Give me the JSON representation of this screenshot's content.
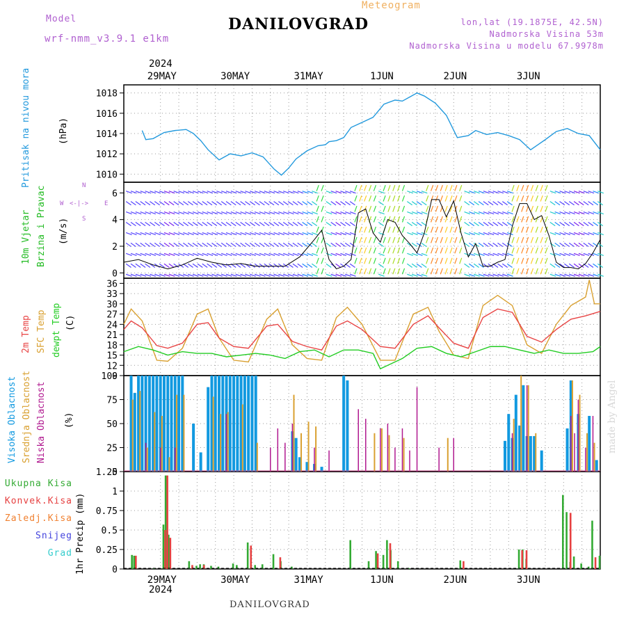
{
  "header": {
    "model_label": "Model",
    "model_name": "wrf-nmm_v3.9.1 e1km",
    "title": "DANILOVGRAD",
    "meteogram_label": "Meteogram",
    "lonlat": "lon,lat (19.1875E, 42.5N)",
    "altitude": "Nadmorska Visina 53m",
    "model_altitude": "Nadmorska Visina u modelu 67.9978m",
    "footer_station": "DANILOVGRAD",
    "watermark": "made by Angel"
  },
  "colors": {
    "pressure": "#2299dd",
    "wind_label": "#22bb22",
    "temp2m": "#e84444",
    "sfc_temp": "#d9a030",
    "dewpt": "#22cc22",
    "high_cloud": "#1199e0",
    "mid_cloud": "#d9a030",
    "low_cloud": "#b0188f",
    "total_precip": "#33aa33",
    "convective_precip": "#e64040",
    "frozen_precip": "#f08030",
    "snow": "#4444dd",
    "graupel": "#33cccc",
    "header_purple": "#b060d0",
    "meteogram_orange": "#f0b060"
  },
  "time_axis": {
    "year_top": "2024",
    "year_bottom": "2024",
    "day_labels": [
      "29MAY",
      "30MAY",
      "31MAY",
      "1JUN",
      "2JUN",
      "3JUN"
    ]
  },
  "chart_data": [
    {
      "type": "line",
      "panel": "pressure",
      "ylabel_main": "Pritisak na nivou mora",
      "ylabel_unit": "(hPa)",
      "ylim": [
        1009.2,
        1018.8
      ],
      "yticks": [
        "1010",
        "1012",
        "1014",
        "1016",
        "1018"
      ],
      "x_unit": "days from 28 May 00 UTC",
      "series": [
        {
          "x": [
            0.25,
            0.3,
            0.4,
            0.55,
            0.7,
            0.85,
            0.95,
            1.05,
            1.15,
            1.3,
            1.45,
            1.6,
            1.75,
            1.9,
            2.05,
            2.15,
            2.25,
            2.35,
            2.5,
            2.65,
            2.75,
            2.8,
            2.9,
            3.0,
            3.1,
            3.25,
            3.4,
            3.55,
            3.7,
            3.8,
            3.9,
            4.0,
            4.1,
            4.25,
            4.4,
            4.55,
            4.7,
            4.8,
            4.95,
            5.1,
            5.25,
            5.4,
            5.55,
            5.65,
            5.75,
            5.9,
            6.05,
            6.2,
            6.35,
            6.5
          ],
          "y": [
            1014.3,
            1013.4,
            1013.5,
            1014.1,
            1014.3,
            1014.4,
            1014.0,
            1013.3,
            1012.4,
            1011.4,
            1012.0,
            1011.8,
            1012.1,
            1011.7,
            1010.5,
            1009.9,
            1010.6,
            1011.5,
            1012.3,
            1012.8,
            1012.9,
            1013.2,
            1013.3,
            1013.6,
            1014.6,
            1015.1,
            1015.6,
            1016.9,
            1017.3,
            1017.2,
            1017.6,
            1018.0,
            1017.7,
            1017.0,
            1015.8,
            1013.6,
            1013.8,
            1014.3,
            1013.9,
            1014.1,
            1013.8,
            1013.4,
            1012.4,
            1012.9,
            1013.4,
            1014.2,
            1014.5,
            1014.0,
            1013.8,
            1012.4
          ]
        }
      ]
    },
    {
      "type": "line",
      "panel": "wind",
      "ylabel_main": "10m Vjetar",
      "ylabel_sub": "Brzina i Pravac",
      "ylabel_unit": "(m/s)",
      "compass": {
        "n": "N",
        "s": "S",
        "w": "W",
        "e": "E",
        "arrows": "<-|->"
      },
      "ylim": [
        -0.4,
        6.8
      ],
      "yticks": [
        "0",
        "2",
        "4",
        "6"
      ],
      "series": [
        {
          "name": "speed",
          "x": [
            0.0,
            0.2,
            0.4,
            0.6,
            0.8,
            1.0,
            1.2,
            1.4,
            1.6,
            1.8,
            2.0,
            2.2,
            2.4,
            2.6,
            2.7,
            2.8,
            2.9,
            3.0,
            3.1,
            3.2,
            3.3,
            3.4,
            3.5,
            3.6,
            3.7,
            3.8,
            3.9,
            4.0,
            4.1,
            4.2,
            4.3,
            4.4,
            4.5,
            4.6,
            4.7,
            4.8,
            4.9,
            5.0,
            5.1,
            5.2,
            5.3,
            5.4,
            5.5,
            5.6,
            5.7,
            5.8,
            5.9,
            6.0,
            6.1,
            6.2,
            6.3,
            6.4,
            6.5
          ],
          "y": [
            0.8,
            1.0,
            0.6,
            0.3,
            0.6,
            1.1,
            0.8,
            0.6,
            0.7,
            0.5,
            0.5,
            0.5,
            1.2,
            2.5,
            3.2,
            1.0,
            0.3,
            0.5,
            1.0,
            4.5,
            4.8,
            3.0,
            2.3,
            4.0,
            3.8,
            2.8,
            2.2,
            1.5,
            3.0,
            5.5,
            5.5,
            4.2,
            5.4,
            3.0,
            1.2,
            2.2,
            0.5,
            0.5,
            0.8,
            1.0,
            3.5,
            5.2,
            5.2,
            4.0,
            4.3,
            2.8,
            0.8,
            0.4,
            0.4,
            0.3,
            0.7,
            1.5,
            2.5
          ]
        }
      ]
    },
    {
      "type": "line",
      "panel": "temperature",
      "ylabel_lines": [
        "2m Temp",
        "SFC Temp",
        "dewpt Temp"
      ],
      "ylabel_unit": "(C)",
      "ylim": [
        9,
        37.5
      ],
      "yticks": [
        "9",
        "12",
        "15",
        "18",
        "21",
        "24",
        "27",
        "30",
        "33",
        "36"
      ],
      "series": [
        {
          "name": "2m Temp",
          "x": [
            0.0,
            0.1,
            0.25,
            0.45,
            0.6,
            0.8,
            1.0,
            1.15,
            1.3,
            1.5,
            1.7,
            1.95,
            2.1,
            2.3,
            2.5,
            2.7,
            2.9,
            3.05,
            3.25,
            3.5,
            3.7,
            3.95,
            4.15,
            4.3,
            4.5,
            4.7,
            4.9,
            5.1,
            5.3,
            5.5,
            5.7,
            5.9,
            6.1,
            6.3,
            6.5
          ],
          "y": [
            22.5,
            25.0,
            23.0,
            17.8,
            17.0,
            18.5,
            24.0,
            24.5,
            20.0,
            17.5,
            17.0,
            23.5,
            24.0,
            19.0,
            17.5,
            16.5,
            23.5,
            25.0,
            22.5,
            17.5,
            17.0,
            24.0,
            26.5,
            23.0,
            18.5,
            17.0,
            26.0,
            28.5,
            27.5,
            20.5,
            18.8,
            22.5,
            25.5,
            26.5,
            27.8
          ]
        },
        {
          "name": "SFC Temp",
          "x": [
            0.0,
            0.1,
            0.25,
            0.45,
            0.6,
            0.8,
            1.0,
            1.15,
            1.3,
            1.5,
            1.7,
            1.95,
            2.1,
            2.3,
            2.5,
            2.7,
            2.9,
            3.05,
            3.25,
            3.5,
            3.7,
            3.95,
            4.15,
            4.3,
            4.5,
            4.7,
            4.9,
            5.1,
            5.3,
            5.5,
            5.7,
            5.9,
            6.1,
            6.3,
            6.35,
            6.42,
            6.5
          ],
          "y": [
            24.0,
            28.5,
            25.0,
            13.5,
            13.2,
            17.0,
            27.0,
            28.5,
            20.0,
            13.5,
            13.0,
            25.5,
            28.5,
            18.0,
            14.0,
            13.5,
            26.0,
            29.0,
            24.0,
            13.5,
            13.5,
            27.0,
            29.0,
            22.0,
            15.0,
            14.0,
            29.5,
            32.5,
            29.5,
            18.0,
            15.5,
            24.0,
            29.5,
            32.0,
            37.0,
            30.0,
            30.0
          ]
        },
        {
          "name": "dewpt Temp",
          "x": [
            0.0,
            0.2,
            0.4,
            0.6,
            0.8,
            1.0,
            1.2,
            1.4,
            1.6,
            1.8,
            2.0,
            2.2,
            2.4,
            2.6,
            2.8,
            3.0,
            3.2,
            3.4,
            3.5,
            3.6,
            3.8,
            4.0,
            4.2,
            4.4,
            4.6,
            4.8,
            5.0,
            5.2,
            5.4,
            5.6,
            5.8,
            6.0,
            6.2,
            6.4,
            6.5
          ],
          "y": [
            16.0,
            17.5,
            16.5,
            15.0,
            16.0,
            15.5,
            15.5,
            14.5,
            15.0,
            15.5,
            15.0,
            14.0,
            16.0,
            16.5,
            14.5,
            16.5,
            16.5,
            15.5,
            11.0,
            12.0,
            14.0,
            17.0,
            17.5,
            15.5,
            14.5,
            16.0,
            17.5,
            17.5,
            16.5,
            15.5,
            16.5,
            15.5,
            15.5,
            16.0,
            17.5
          ]
        }
      ]
    },
    {
      "type": "bar",
      "panel": "cloud",
      "ylabel_lines": [
        "Visoka Oblacnost",
        "Srednja Oblacnost",
        "Niska Oblacnost"
      ],
      "ylabel_unit": "(%)",
      "ylim": [
        0,
        100
      ],
      "yticks": [
        "0",
        "25",
        "50",
        "75",
        "100"
      ],
      "series": [
        {
          "name": "Visoka Oblacnost",
          "x": [
            0.1,
            0.15,
            0.2,
            0.25,
            0.3,
            0.35,
            0.4,
            0.45,
            0.5,
            0.55,
            0.6,
            0.65,
            0.7,
            0.75,
            0.8,
            0.95,
            1.05,
            1.15,
            1.2,
            1.25,
            1.3,
            1.35,
            1.4,
            1.45,
            1.5,
            1.55,
            1.6,
            1.65,
            1.7,
            1.75,
            1.8,
            2.3,
            2.35,
            2.4,
            2.5,
            2.6,
            2.7,
            3.0,
            3.05,
            5.2,
            5.25,
            5.3,
            5.35,
            5.4,
            5.45,
            5.5,
            5.55,
            5.6,
            5.7,
            6.05,
            6.1,
            6.2,
            6.35,
            6.45
          ],
          "y": [
            100,
            82,
            100,
            100,
            100,
            100,
            100,
            100,
            100,
            100,
            100,
            100,
            100,
            100,
            100,
            50,
            20,
            88,
            100,
            100,
            100,
            100,
            100,
            100,
            100,
            100,
            100,
            100,
            100,
            100,
            100,
            42,
            35,
            15,
            10,
            8,
            5,
            100,
            95,
            32,
            60,
            35,
            80,
            48,
            90,
            37,
            37,
            37,
            22,
            45,
            95,
            60,
            58,
            12
          ]
        },
        {
          "name": "Srednja Oblacnost",
          "x": [
            0.12,
            0.22,
            0.32,
            0.42,
            0.52,
            0.62,
            0.72,
            0.82,
            1.22,
            1.32,
            1.42,
            1.62,
            1.82,
            2.32,
            2.42,
            2.52,
            2.62,
            3.42,
            3.52,
            3.62,
            3.82,
            4.42,
            5.32,
            5.42,
            5.52,
            5.62,
            6.12,
            6.22,
            6.32,
            6.42
          ],
          "y": [
            75,
            84,
            25,
            62,
            58,
            15,
            80,
            80,
            78,
            60,
            62,
            70,
            30,
            80,
            40,
            52,
            47,
            40,
            45,
            38,
            35,
            35,
            55,
            100,
            90,
            40,
            95,
            80,
            40,
            30
          ]
        },
        {
          "name": "Niska Oblacnost",
          "x": [
            0.3,
            0.5,
            0.7,
            1.4,
            2.0,
            2.1,
            2.2,
            2.3,
            2.6,
            2.8,
            3.2,
            3.3,
            3.5,
            3.6,
            3.7,
            3.8,
            3.9,
            4.0,
            4.3,
            4.5,
            5.3,
            5.5,
            6.1,
            6.15,
            6.2,
            6.3,
            6.4
          ],
          "y": [
            30,
            25,
            25,
            60,
            25,
            45,
            30,
            50,
            25,
            22,
            65,
            55,
            45,
            50,
            25,
            45,
            22,
            88,
            25,
            35,
            40,
            90,
            58,
            40,
            75,
            25,
            58
          ]
        }
      ]
    },
    {
      "type": "bar",
      "panel": "precip",
      "ylabel_unit": "1hr Precip (mm)",
      "legend": [
        "Ukupna Kisa",
        "Konvek.Kisa",
        "Zaledj.Kisa",
        "Snijeg",
        "Grad"
      ],
      "ylim": [
        0,
        1.25
      ],
      "yticks": [
        "0",
        "0.25",
        "0.5",
        "0.75",
        "1",
        "1.25"
      ],
      "series": [
        {
          "name": "Ukupna Kisa",
          "x": [
            0.12,
            0.15,
            0.42,
            0.55,
            0.58,
            0.62,
            0.9,
            1.0,
            1.05,
            1.1,
            1.2,
            1.3,
            1.5,
            1.55,
            1.7,
            1.8,
            1.9,
            2.05,
            2.15,
            2.3,
            3.1,
            3.35,
            3.45,
            3.55,
            3.6,
            3.65,
            3.75,
            3.9,
            4.6,
            5.4,
            5.45,
            5.5,
            6.0,
            6.05,
            6.1,
            6.15,
            6.25,
            6.35,
            6.4,
            6.5
          ],
          "y": [
            0.18,
            0.17,
            0.01,
            0.57,
            1.2,
            0.44,
            0.1,
            0.04,
            0.06,
            0.06,
            0.04,
            0.03,
            0.07,
            0.05,
            0.34,
            0.05,
            0.06,
            0.19,
            0.1,
            0.03,
            0.37,
            0.1,
            0.23,
            0.18,
            0.37,
            0.24,
            0.1,
            0.01,
            0.11,
            0.25,
            0.25,
            0.13,
            0.95,
            0.73,
            0.09,
            0.16,
            0.07,
            0.03,
            0.62,
            0.17
          ]
        },
        {
          "name": "Konvek.Kisa",
          "x": [
            0.15,
            0.55,
            0.58,
            0.62,
            0.92,
            1.08,
            1.72,
            2.12,
            3.45,
            3.62,
            4.62,
            5.42,
            5.48,
            6.08,
            6.42
          ],
          "y": [
            0.17,
            0.5,
            1.2,
            0.4,
            0.05,
            0.05,
            0.3,
            0.15,
            0.2,
            0.33,
            0.1,
            0.24,
            0.24,
            0.72,
            0.15
          ]
        }
      ]
    }
  ]
}
